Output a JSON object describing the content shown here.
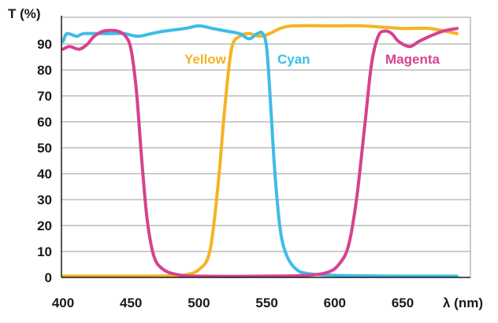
{
  "chart_data": {
    "type": "line",
    "ylabel": "T (%)",
    "xlabel": "λ (nm)",
    "xlim": [
      400,
      690
    ],
    "ylim": [
      0,
      100
    ],
    "x_ticks": [
      "400",
      "450",
      "500",
      "550",
      "600",
      "650"
    ],
    "y_ticks": [
      "0",
      "10",
      "20",
      "30",
      "40",
      "50",
      "60",
      "70",
      "80",
      "90"
    ],
    "grid": true,
    "series": [
      {
        "name": "Yellow",
        "color": "#F5B324",
        "points": [
          [
            400,
            0.5
          ],
          [
            450,
            0.5
          ],
          [
            480,
            0.6
          ],
          [
            490,
            1
          ],
          [
            500,
            3
          ],
          [
            508,
            10
          ],
          [
            514,
            35
          ],
          [
            519,
            65
          ],
          [
            524,
            88
          ],
          [
            530,
            93
          ],
          [
            537,
            94
          ],
          [
            545,
            93
          ],
          [
            552,
            94
          ],
          [
            560,
            96
          ],
          [
            570,
            97
          ],
          [
            600,
            97
          ],
          [
            620,
            97
          ],
          [
            650,
            96
          ],
          [
            670,
            96
          ],
          [
            690,
            94
          ]
        ]
      },
      {
        "name": "Cyan",
        "color": "#3CBDE6",
        "points": [
          [
            400,
            91
          ],
          [
            403,
            94
          ],
          [
            410,
            93
          ],
          [
            415,
            94
          ],
          [
            425,
            94
          ],
          [
            435,
            94
          ],
          [
            445,
            94
          ],
          [
            455,
            93
          ],
          [
            465,
            94
          ],
          [
            475,
            95
          ],
          [
            490,
            96
          ],
          [
            500,
            97
          ],
          [
            510,
            96
          ],
          [
            520,
            95
          ],
          [
            530,
            94
          ],
          [
            537,
            92
          ],
          [
            543,
            94
          ],
          [
            547,
            94
          ],
          [
            550,
            88
          ],
          [
            553,
            65
          ],
          [
            556,
            40
          ],
          [
            560,
            18
          ],
          [
            565,
            8
          ],
          [
            572,
            3
          ],
          [
            580,
            1.5
          ],
          [
            600,
            0.8
          ],
          [
            650,
            0.5
          ],
          [
            690,
            0.5
          ]
        ]
      },
      {
        "name": "Magenta",
        "color": "#D6428F",
        "points": [
          [
            400,
            88
          ],
          [
            405,
            89
          ],
          [
            412,
            88
          ],
          [
            418,
            90
          ],
          [
            423,
            93
          ],
          [
            430,
            95
          ],
          [
            440,
            95
          ],
          [
            446,
            93
          ],
          [
            450,
            88
          ],
          [
            454,
            72
          ],
          [
            458,
            45
          ],
          [
            462,
            22
          ],
          [
            467,
            8
          ],
          [
            474,
            3
          ],
          [
            485,
            1
          ],
          [
            500,
            0.5
          ],
          [
            550,
            0.5
          ],
          [
            580,
            0.8
          ],
          [
            595,
            2
          ],
          [
            603,
            5
          ],
          [
            610,
            12
          ],
          [
            616,
            30
          ],
          [
            622,
            58
          ],
          [
            627,
            82
          ],
          [
            632,
            93
          ],
          [
            637,
            95
          ],
          [
            642,
            94
          ],
          [
            647,
            91
          ],
          [
            655,
            89
          ],
          [
            662,
            91
          ],
          [
            670,
            93
          ],
          [
            680,
            95
          ],
          [
            690,
            96
          ]
        ]
      }
    ],
    "annotations": [
      "Yellow",
      "Cyan",
      "Magenta"
    ]
  }
}
